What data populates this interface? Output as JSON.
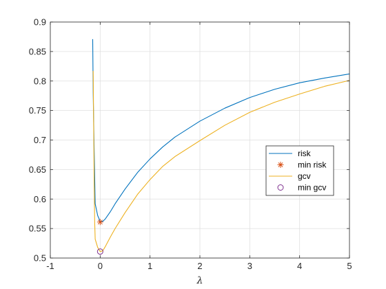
{
  "chart_data": {
    "type": "line",
    "title": "",
    "xlabel": "λ",
    "ylabel": "",
    "xlim": [
      -1,
      5
    ],
    "ylim": [
      0.5,
      0.9
    ],
    "grid": true,
    "legend_position": "right-center",
    "xticks": [
      "-1",
      "0",
      "1",
      "2",
      "3",
      "4",
      "5"
    ],
    "yticks": [
      "0.5",
      "0.55",
      "0.6",
      "0.65",
      "0.7",
      "0.75",
      "0.8",
      "0.85",
      "0.9"
    ],
    "series": [
      {
        "name": "risk",
        "kind": "line",
        "color": "#0072BD",
        "x": [
          -0.15,
          -0.14,
          -0.12,
          -0.1,
          -0.05,
          0,
          0.05,
          0.1,
          0.2,
          0.3,
          0.5,
          0.75,
          1,
          1.25,
          1.5,
          2,
          2.5,
          3,
          3.5,
          4,
          4.5,
          5
        ],
        "y": [
          0.871,
          0.78,
          0.68,
          0.592,
          0.572,
          0.562,
          0.562,
          0.566,
          0.578,
          0.592,
          0.617,
          0.645,
          0.668,
          0.688,
          0.705,
          0.732,
          0.754,
          0.772,
          0.786,
          0.797,
          0.805,
          0.812
        ]
      },
      {
        "name": "min risk",
        "kind": "marker",
        "marker": "asterisk",
        "color": "#D95319",
        "x": [
          0
        ],
        "y": [
          0.561
        ]
      },
      {
        "name": "gcv",
        "kind": "line",
        "color": "#EDB120",
        "x": [
          -0.14,
          -0.13,
          -0.12,
          -0.11,
          -0.1,
          -0.05,
          0,
          0.05,
          0.1,
          0.2,
          0.3,
          0.5,
          0.75,
          1,
          1.25,
          1.5,
          2,
          2.5,
          3,
          3.5,
          4,
          4.5,
          5
        ],
        "y": [
          0.817,
          0.72,
          0.62,
          0.56,
          0.532,
          0.518,
          0.511,
          0.512,
          0.519,
          0.535,
          0.55,
          0.577,
          0.608,
          0.633,
          0.655,
          0.672,
          0.699,
          0.725,
          0.747,
          0.764,
          0.778,
          0.791,
          0.801
        ]
      },
      {
        "name": "min gcv",
        "kind": "marker",
        "marker": "circle",
        "color": "#7E2F8E",
        "x": [
          0
        ],
        "y": [
          0.511
        ]
      }
    ]
  }
}
